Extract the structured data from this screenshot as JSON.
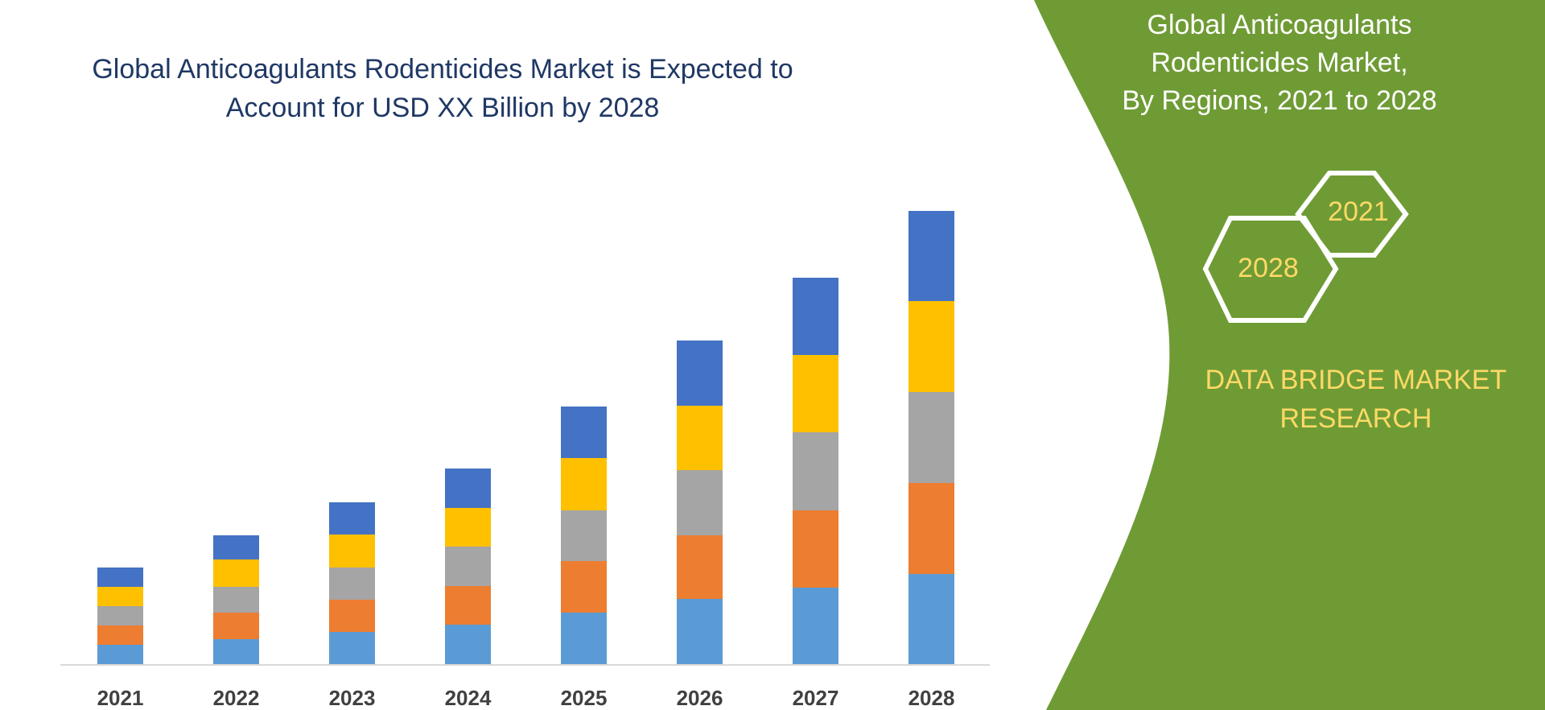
{
  "colors": {
    "panel_green": "#6f9b35",
    "series": [
      "#5b9bd5",
      "#ed7d31",
      "#a5a5a5",
      "#ffc000",
      "#4472c4"
    ],
    "title_text": "#1f3864",
    "accent_yellow": "#ffd966"
  },
  "sidebar": {
    "title_lines": [
      "Global Anticoagulants",
      "Rodenticides Market,",
      "By Regions, 2021 to 2028"
    ],
    "hex_top": "2021",
    "hex_bottom": "2028",
    "brand_lines": [
      "DATA BRIDGE MARKET",
      "RESEARCH"
    ]
  },
  "chart_data": {
    "type": "bar",
    "stacked": true,
    "title_lines": [
      "Global Anticoagulants Rodenticides Market is Expected to",
      "Account for USD XX Billion by 2028"
    ],
    "categories": [
      "2021",
      "2022",
      "2023",
      "2024",
      "2025",
      "2026",
      "2027",
      "2028"
    ],
    "series": [
      {
        "values": [
          2.4,
          3.1,
          4.0,
          4.9,
          6.4,
          8.1,
          9.5,
          11.2
        ]
      },
      {
        "values": [
          2.4,
          3.3,
          4.0,
          4.8,
          6.4,
          7.9,
          9.6,
          11.3
        ]
      },
      {
        "values": [
          2.4,
          3.2,
          4.0,
          4.9,
          6.3,
          8.1,
          9.7,
          11.3
        ]
      },
      {
        "values": [
          2.4,
          3.4,
          4.1,
          4.8,
          6.5,
          8.0,
          9.6,
          11.3
        ]
      },
      {
        "values": [
          2.4,
          3.0,
          4.0,
          4.9,
          6.4,
          8.1,
          9.6,
          11.2
        ]
      }
    ],
    "ylim": [
      0,
      60
    ],
    "grid": false,
    "legend": "none"
  }
}
